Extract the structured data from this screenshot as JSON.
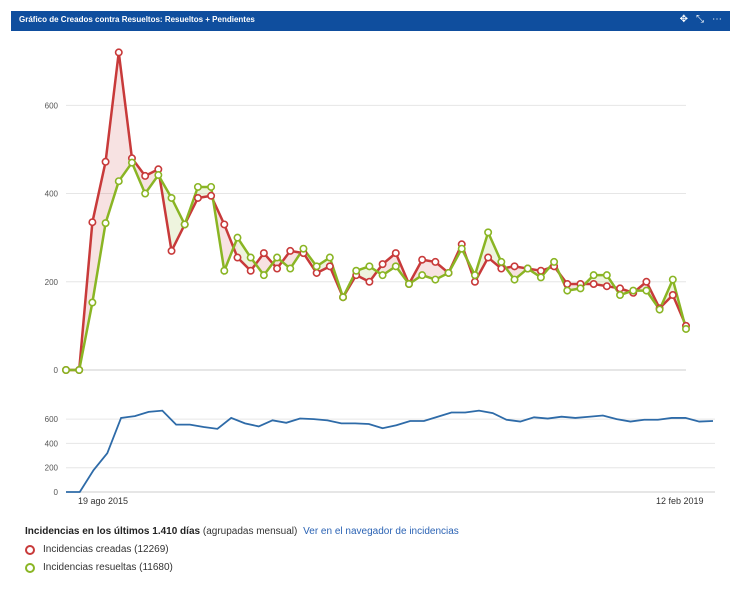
{
  "header": {
    "title": "Gráfico de Creados contra Resueltos: Resueltos + Pendientes",
    "icons": [
      "move-icon",
      "minimize-icon",
      "more-icon"
    ]
  },
  "colors": {
    "created": "#c83a3a",
    "resolved": "#8ab524",
    "pending": "#2e6ba8",
    "header": "#0f4e9e"
  },
  "chart_data": [
    {
      "type": "line",
      "yticks": [
        "0",
        "200",
        "400",
        "600"
      ],
      "ylim": [
        0,
        730
      ],
      "x_start_label": "19 ago 2015",
      "x_end_label": "12 feb 2019",
      "series": [
        {
          "name": "Incidencias creadas",
          "values": [
            0,
            0,
            335,
            472,
            720,
            480,
            440,
            455,
            270,
            330,
            390,
            395,
            330,
            255,
            225,
            265,
            230,
            270,
            265,
            220,
            235,
            165,
            215,
            200,
            240,
            265,
            195,
            250,
            245,
            220,
            285,
            200,
            255,
            230,
            235,
            230,
            225,
            235,
            195,
            195,
            195,
            190,
            185,
            175,
            200,
            140,
            170,
            100
          ]
        },
        {
          "name": "Incidencias resueltas",
          "values": [
            0,
            0,
            153,
            333,
            428,
            470,
            400,
            442,
            390,
            330,
            415,
            415,
            225,
            300,
            255,
            215,
            255,
            230,
            275,
            235,
            255,
            165,
            225,
            235,
            215,
            235,
            195,
            215,
            205,
            220,
            275,
            215,
            312,
            245,
            205,
            230,
            210,
            245,
            180,
            185,
            215,
            215,
            170,
            180,
            180,
            137,
            205,
            93
          ]
        }
      ]
    },
    {
      "type": "line",
      "yticks": [
        "0",
        "200",
        "400",
        "600"
      ],
      "ylim": [
        0,
        700
      ],
      "x_start_label": "19 ago 2015",
      "x_end_label": "12 feb 2019",
      "series": [
        {
          "name": "Pendientes",
          "values": [
            0,
            0,
            180,
            320,
            610,
            625,
            660,
            670,
            555,
            555,
            535,
            520,
            610,
            565,
            540,
            590,
            570,
            605,
            600,
            590,
            565,
            565,
            560,
            525,
            550,
            585,
            585,
            620,
            655,
            655,
            670,
            650,
            595,
            580,
            615,
            605,
            620,
            610,
            620,
            630,
            600,
            580,
            595,
            595,
            610,
            610,
            580,
            585
          ]
        }
      ]
    }
  ],
  "legend": {
    "summary_bold": "Incidencias en los últimos 1.410 días",
    "summary_rest": "(agrupadas mensual)",
    "link": "Ver en el navegador de incidencias",
    "created_label": "Incidencias creadas (12269)",
    "resolved_label": "Incidencias resueltas (11680)"
  }
}
